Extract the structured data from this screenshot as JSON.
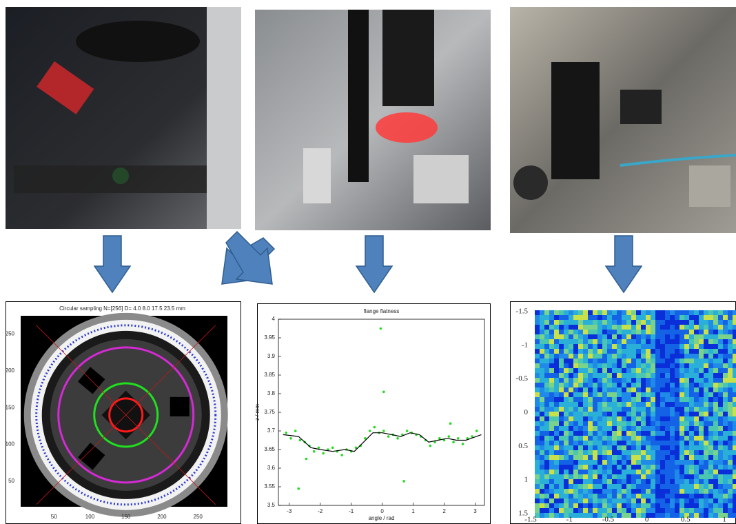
{
  "chart_data": [
    {
      "type": "image",
      "title": "Circular sampling N=[256] D= 4.0 8.0 17.5 23.5 mm",
      "xlim": [
        0,
        290
      ],
      "ylim": [
        15,
        275
      ],
      "xticks": [
        50,
        100,
        150,
        200,
        250
      ],
      "yticks": [
        50,
        100,
        150,
        200,
        250
      ]
    },
    {
      "type": "scatter",
      "title": "flange flatness",
      "xlabel": "angle / rad",
      "ylabel": "z / mm",
      "xlim": [
        -3.35,
        3.3
      ],
      "ylim": [
        3.5,
        4
      ],
      "xticks": [
        -3,
        -2,
        -1,
        0,
        1,
        2,
        3
      ],
      "yticks": [
        3.5,
        3.55,
        3.6,
        3.65,
        3.7,
        3.75,
        3.8,
        3.85,
        3.9,
        3.95,
        4
      ],
      "series": [
        {
          "color": "#22dd22",
          "kind": "points",
          "x": [
            -3.1,
            -2.95,
            -2.8,
            -2.65,
            -2.5,
            -2.35,
            -2.2,
            -2.05,
            -1.9,
            -1.75,
            -1.6,
            -1.45,
            -1.3,
            -1.15,
            -1.0,
            -0.85,
            -0.7,
            -0.55,
            -0.4,
            -0.25,
            -0.1,
            0.05,
            0.2,
            0.35,
            0.5,
            0.65,
            0.8,
            0.95,
            1.1,
            1.25,
            1.4,
            1.55,
            1.7,
            1.85,
            2.0,
            2.15,
            2.3,
            2.45,
            2.6,
            2.75,
            2.9,
            3.05,
            -0.05,
            0.05,
            -2.7,
            0.7,
            -2.45,
            2.2
          ],
          "values": [
            3.695,
            3.68,
            3.7,
            3.675,
            3.67,
            3.66,
            3.645,
            3.655,
            3.64,
            3.65,
            3.655,
            3.645,
            3.635,
            3.65,
            3.645,
            3.655,
            3.66,
            3.68,
            3.7,
            3.71,
            3.695,
            3.7,
            3.685,
            3.69,
            3.68,
            3.69,
            3.7,
            3.695,
            3.69,
            3.685,
            3.675,
            3.66,
            3.67,
            3.68,
            3.675,
            3.685,
            3.67,
            3.68,
            3.665,
            3.68,
            3.685,
            3.7,
            3.975,
            3.805,
            3.545,
            3.565,
            3.625,
            3.72
          ]
        },
        {
          "color": "#000000",
          "kind": "line",
          "x": [
            -3.2,
            -2.7,
            -2.3,
            -2,
            -1.6,
            -1.2,
            -0.9,
            -0.6,
            -0.3,
            0,
            0.3,
            0.6,
            0.9,
            1.2,
            1.5,
            1.8,
            2.1,
            2.4,
            2.7,
            3.2
          ],
          "values": [
            3.69,
            3.685,
            3.655,
            3.65,
            3.645,
            3.65,
            3.645,
            3.67,
            3.695,
            3.695,
            3.69,
            3.685,
            3.695,
            3.69,
            3.67,
            3.675,
            3.68,
            3.675,
            3.675,
            3.69
          ]
        }
      ]
    },
    {
      "type": "heatmap",
      "xlim": [
        -1.5,
        1.15
      ],
      "ylim": [
        1.5,
        -1.5
      ],
      "xticks": [
        -1.5,
        -1,
        -0.5,
        0,
        0.5,
        1
      ],
      "yticks": [
        -1.5,
        -1,
        -0.5,
        0,
        0.5,
        1,
        1.5
      ]
    }
  ]
}
